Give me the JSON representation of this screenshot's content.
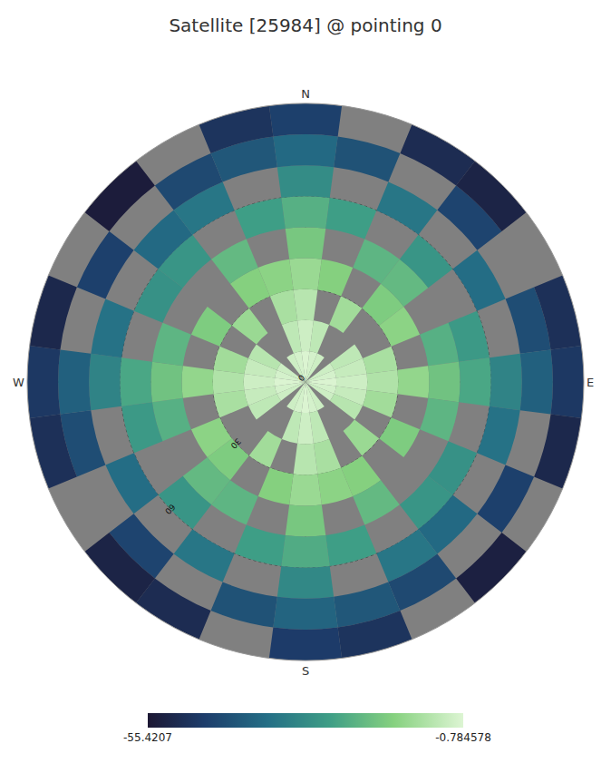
{
  "chart_data": {
    "type": "polar_heatmap",
    "title": "Satellite [25984] @ pointing 0",
    "zenith_edges": [
      0,
      10,
      20,
      30,
      40,
      50,
      60,
      70,
      80,
      90
    ],
    "azimuth": [
      0,
      15,
      30,
      45,
      60,
      75,
      90,
      105,
      120,
      135,
      150,
      165,
      180,
      195,
      210,
      225,
      240,
      255,
      270,
      285,
      300,
      315,
      330,
      345
    ],
    "cells": [
      [
        -1,
        -2,
        -3,
        null,
        -3,
        -2,
        -1,
        -2,
        -3,
        null,
        -3,
        -2,
        -1,
        -2,
        -3,
        null,
        -3,
        -2,
        -1,
        -2,
        -3,
        null,
        -3,
        -2
      ],
      [
        -3,
        -5,
        null,
        null,
        -5,
        -4,
        -3,
        -4,
        -6,
        null,
        null,
        -5,
        -3,
        -5,
        null,
        null,
        -5,
        -4,
        -3,
        -4,
        -6,
        null,
        null,
        -5
      ],
      [
        -6,
        null,
        -9,
        null,
        null,
        -8,
        -7,
        -9,
        null,
        -10,
        null,
        -8,
        -6,
        null,
        -9,
        null,
        null,
        -8,
        -7,
        -9,
        null,
        -10,
        null,
        -8
      ],
      [
        -10,
        -13,
        null,
        -14,
        -12,
        null,
        -11,
        null,
        -14,
        null,
        -13,
        -12,
        -10,
        -13,
        null,
        -14,
        -12,
        null,
        -11,
        null,
        -14,
        null,
        -13,
        -12
      ],
      [
        -15,
        null,
        -19,
        -18,
        null,
        -20,
        -16,
        -19,
        null,
        null,
        -18,
        null,
        -15,
        null,
        -19,
        -18,
        null,
        -20,
        -16,
        -19,
        null,
        null,
        -18,
        null
      ],
      [
        -20,
        -24,
        null,
        -26,
        null,
        -25,
        -22,
        null,
        -27,
        -26,
        null,
        -24,
        -21,
        -24,
        null,
        -26,
        null,
        -25,
        -22,
        null,
        -27,
        -26,
        null,
        -24
      ],
      [
        -28,
        null,
        -33,
        null,
        -35,
        null,
        -30,
        -34,
        null,
        -36,
        -33,
        null,
        -29,
        null,
        -33,
        null,
        -35,
        null,
        -30,
        -34,
        null,
        -36,
        -33,
        null
      ],
      [
        -36,
        -41,
        null,
        -44,
        null,
        -42,
        -38,
        null,
        -45,
        null,
        -43,
        -40,
        -37,
        -41,
        null,
        -44,
        null,
        -42,
        -38,
        null,
        -45,
        null,
        -43,
        -40
      ],
      [
        -45,
        null,
        -50,
        -52,
        null,
        -49,
        -47,
        -51,
        null,
        -53,
        null,
        -48,
        -46,
        null,
        -50,
        -52,
        null,
        -49,
        -47,
        -51,
        null,
        -54,
        null,
        -48
      ]
    ],
    "rlim": [
      0,
      90
    ],
    "rticks": [
      0,
      30,
      60
    ],
    "theta_ticks": [
      {
        "value": 0,
        "label": "N"
      },
      {
        "value": 90,
        "label": "E"
      },
      {
        "value": 180,
        "label": "S"
      },
      {
        "value": 270,
        "label": "W"
      }
    ],
    "colorbar": {
      "range": [
        -55.4207,
        -0.784578
      ],
      "ticks": [
        -55.4207,
        -0.784578
      ]
    },
    "grid": true
  }
}
